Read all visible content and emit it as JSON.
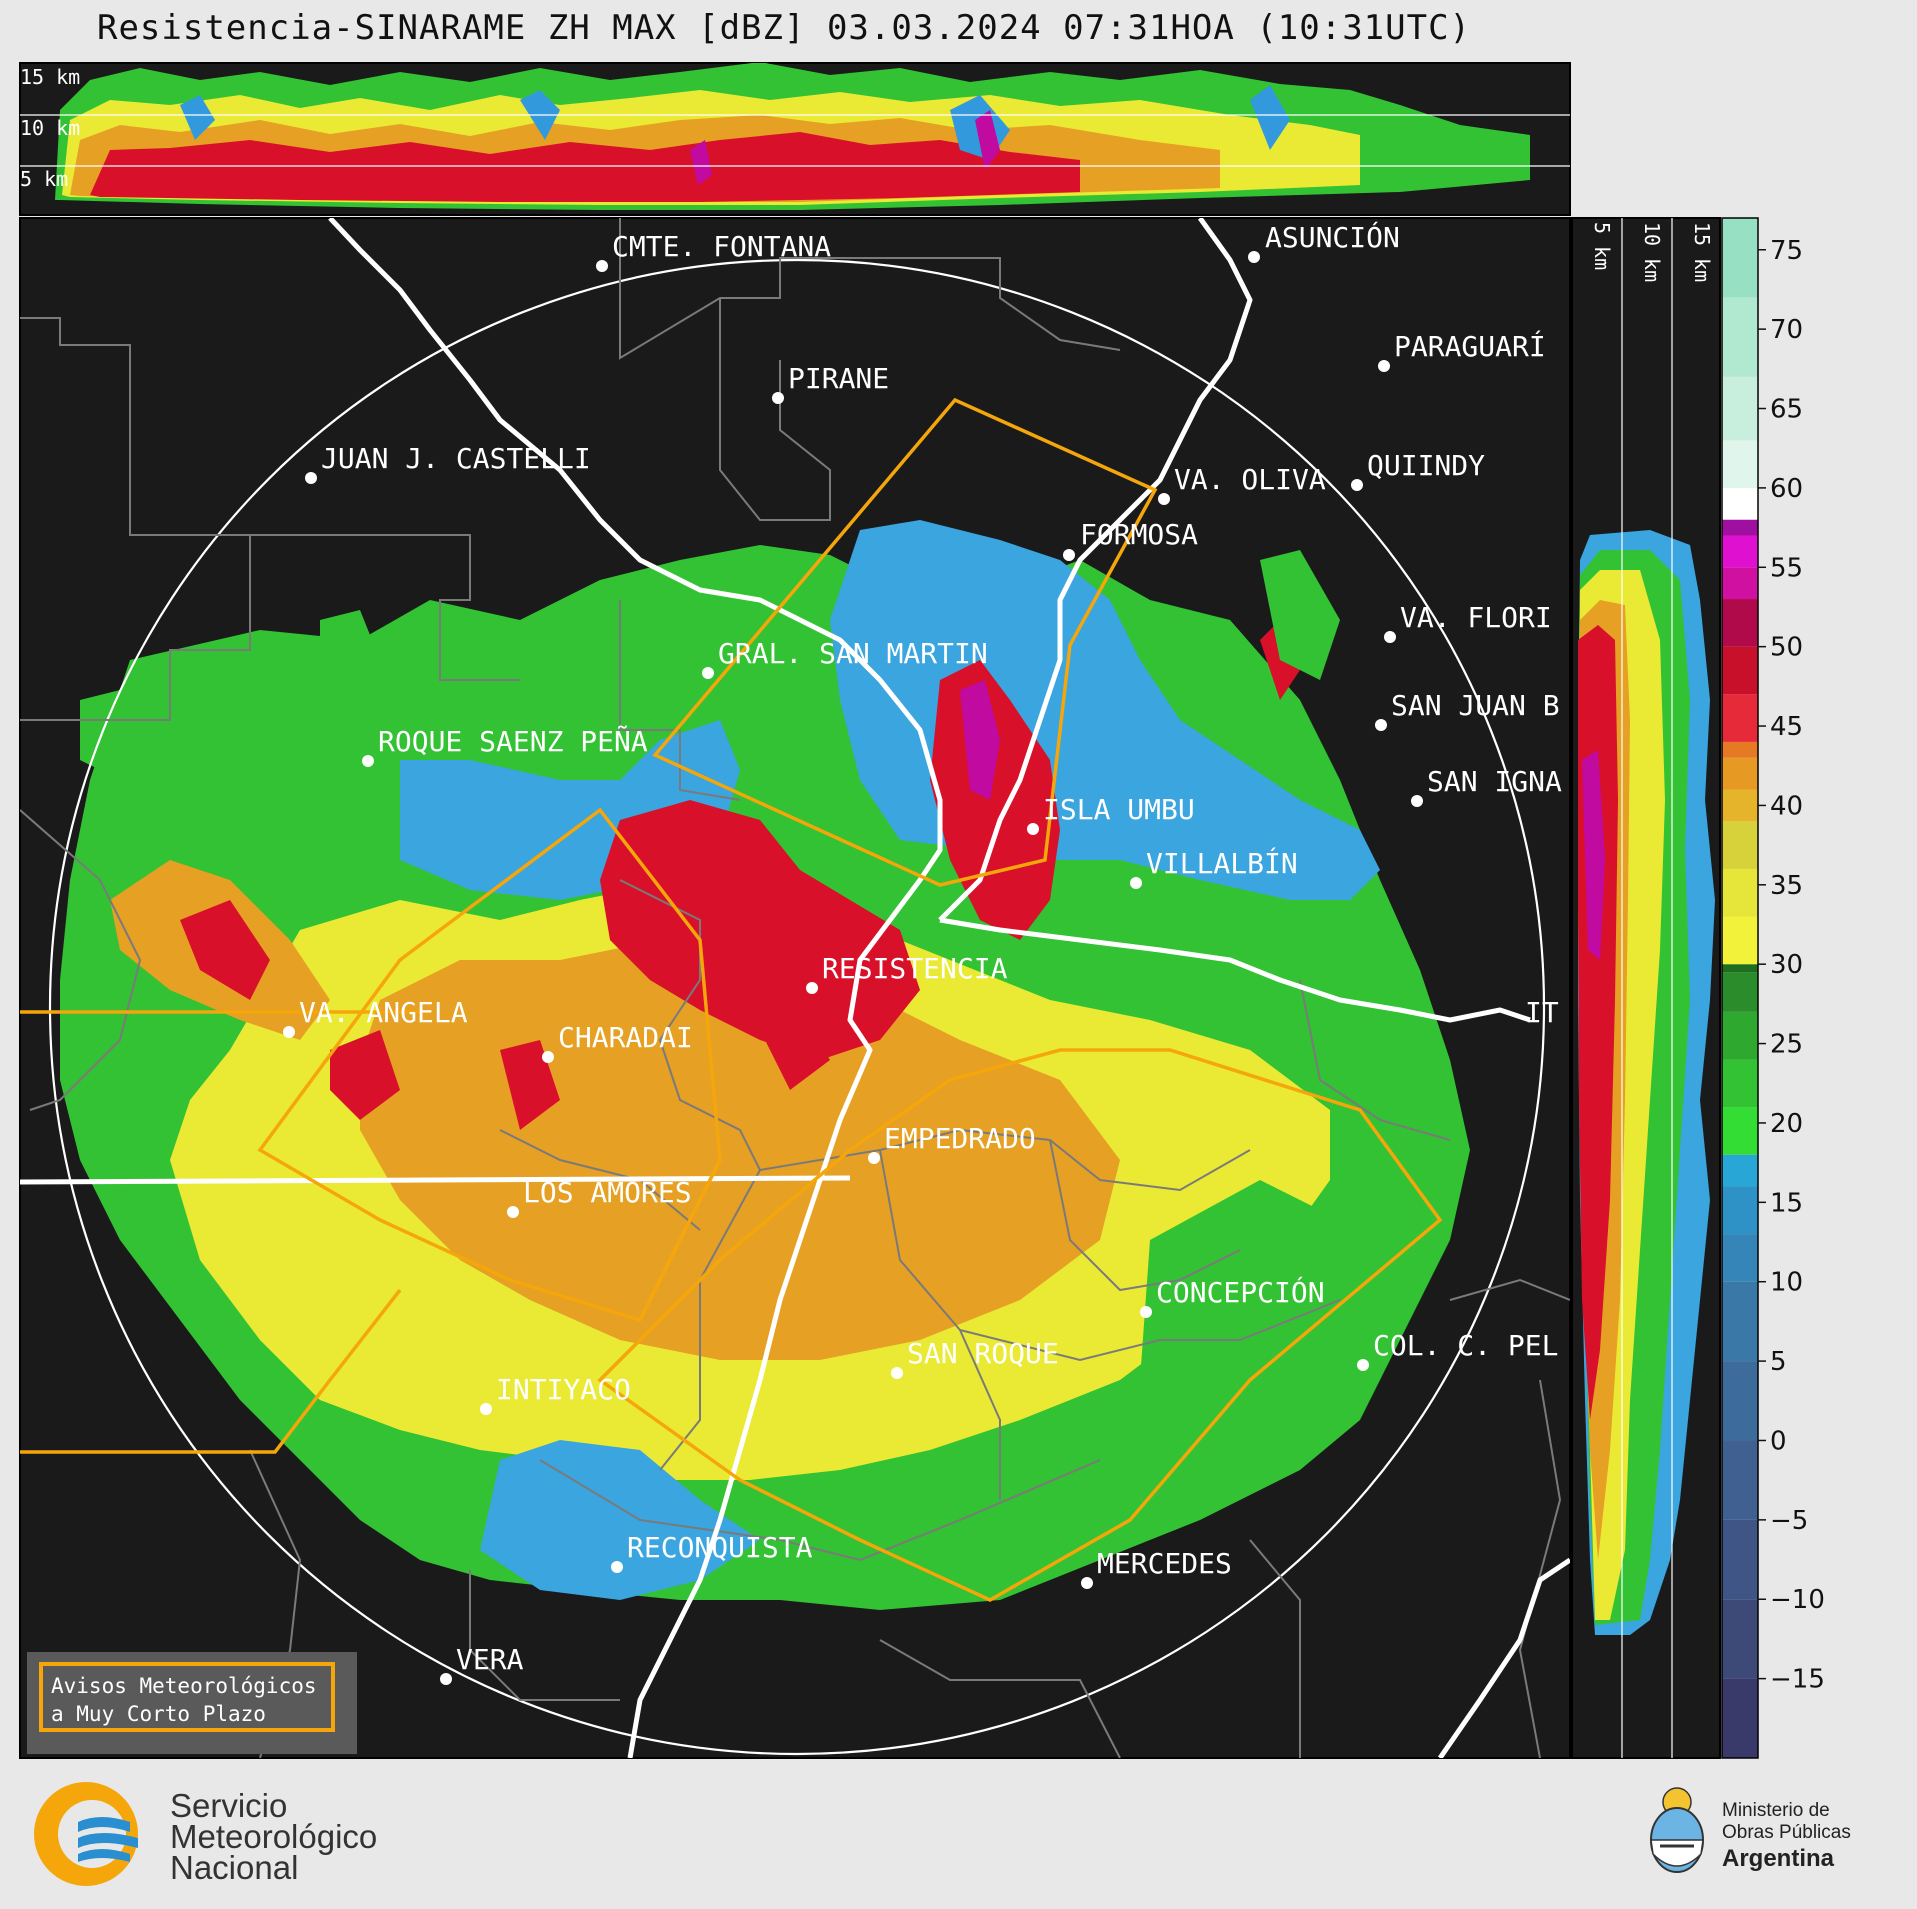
{
  "title": "Resistencia-SINARAME ZH MAX [dBZ] 03.03.2024 07:31HOA (10:31UTC)",
  "height_labels": [
    "15 km",
    "10 km",
    "5 km"
  ],
  "cities": [
    {
      "name": "CMTE. FONTANA"
    },
    {
      "name": "ASUNCIÓN"
    },
    {
      "name": "PARAGUARÍ"
    },
    {
      "name": "PIRANE"
    },
    {
      "name": "JUAN J. CASTELLI"
    },
    {
      "name": "VA. OLIVA"
    },
    {
      "name": "QUIINDY"
    },
    {
      "name": "FORMOSA"
    },
    {
      "name": "VA. FLORI"
    },
    {
      "name": "GRAL. SAN MARTIN"
    },
    {
      "name": "SAN JUAN B"
    },
    {
      "name": "ROQUE SAENZ PEÑA"
    },
    {
      "name": "SAN IGNA"
    },
    {
      "name": "ISLA UMBU"
    },
    {
      "name": "VILLALBÍN"
    },
    {
      "name": "RESISTENCIA"
    },
    {
      "name": "VA. ANGELA"
    },
    {
      "name": "CHARADAI"
    },
    {
      "name": "IT"
    },
    {
      "name": "EMPEDRADO"
    },
    {
      "name": "LOS AMORES"
    },
    {
      "name": "CONCEPCIÓN"
    },
    {
      "name": "SAN ROQUE"
    },
    {
      "name": "COL. C. PEL"
    },
    {
      "name": "INTIYACO"
    },
    {
      "name": "RECONQUISTA"
    },
    {
      "name": "MERCEDES"
    },
    {
      "name": "VERA"
    }
  ],
  "colorbar": {
    "unit": "dBZ",
    "ticks": [
      "75",
      "70",
      "65",
      "60",
      "55",
      "50",
      "45",
      "40",
      "35",
      "30",
      "25",
      "20",
      "15",
      "10",
      "5",
      "0",
      "−5",
      "−10",
      "−15"
    ],
    "range": [
      -20,
      77
    ]
  },
  "warning_box": {
    "line1": "Avisos Meteorológicos",
    "line2": "a Muy Corto Plazo"
  },
  "footer": {
    "smn_line1": "Servicio",
    "smn_line2": "Meteorológico",
    "smn_line3": "Nacional",
    "ministry_line1": "Ministerio de",
    "ministry_line2": "Obras Públicas",
    "ministry_line3": "Argentina"
  },
  "colors": {
    "background": "#1a1a1a",
    "border": "#ffffff",
    "warning_polygon": "#f4a60b",
    "admin_lines": "#7a7a7a"
  }
}
